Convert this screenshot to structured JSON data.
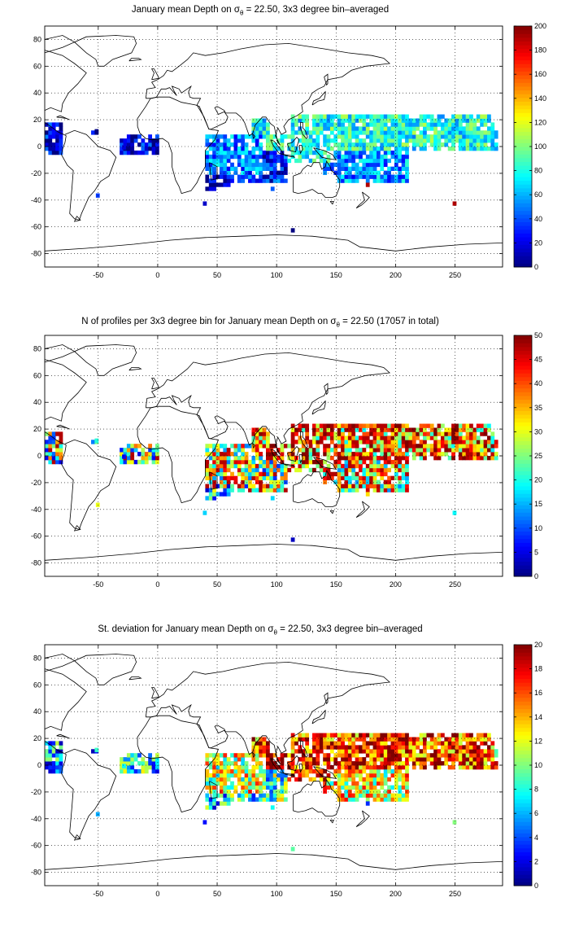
{
  "panels": [
    {
      "title_prefix": "January mean Depth on σ",
      "title_sub": "θ",
      "title_suffix": " = 22.50, 3x3 degree bin–averaged",
      "colorbar": {
        "min": 0,
        "max": 200,
        "ticks": [
          0,
          20,
          40,
          60,
          80,
          100,
          120,
          140,
          160,
          180,
          200
        ]
      },
      "field": "depth"
    },
    {
      "title_prefix": "N of profiles per 3x3 degree bin for January mean Depth on σ",
      "title_sub": "θ",
      "title_suffix": " = 22.50 (17057 in total)",
      "colorbar": {
        "min": 0,
        "max": 50,
        "ticks": [
          0,
          5,
          10,
          15,
          20,
          25,
          30,
          35,
          40,
          45,
          50
        ]
      },
      "field": "count"
    },
    {
      "title_prefix": "St. deviation for January mean Depth on σ",
      "title_sub": "θ",
      "title_suffix": " = 22.50, 3x3 degree bin–averaged",
      "colorbar": {
        "min": 0,
        "max": 20,
        "ticks": [
          0,
          2,
          4,
          6,
          8,
          10,
          12,
          14,
          16,
          18,
          20
        ]
      },
      "field": "std"
    }
  ],
  "axes": {
    "x_range": [
      -95,
      290
    ],
    "y_range": [
      -90,
      90
    ],
    "x_ticks": [
      -50,
      0,
      50,
      100,
      150,
      200,
      250
    ],
    "y_ticks": [
      -80,
      -60,
      -40,
      -20,
      0,
      20,
      40,
      60,
      80
    ],
    "grid": "dotted",
    "colormap": "jet"
  }
}
